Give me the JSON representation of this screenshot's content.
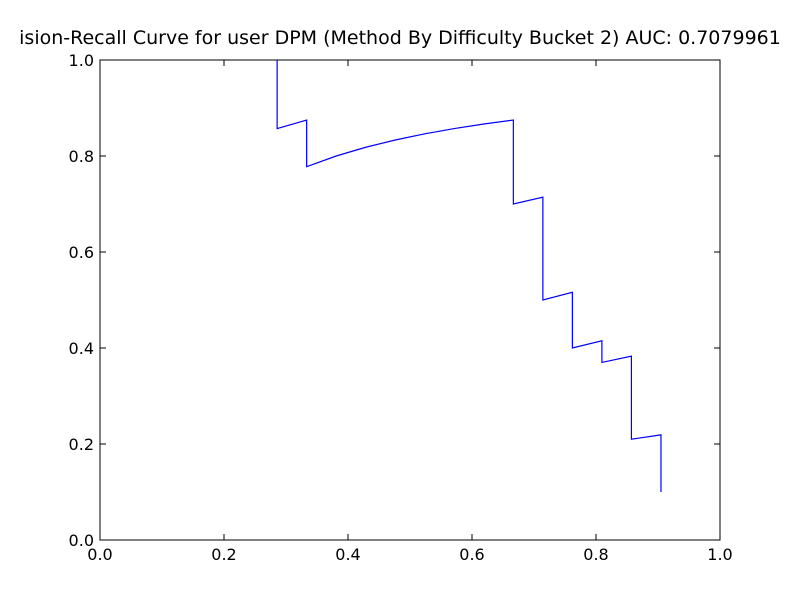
{
  "chart_data": {
    "type": "line",
    "title": "ision-Recall Curve for user DPM (Method By Difficulty Bucket 2) AUC: 0.7079961",
    "xlabel": "",
    "ylabel": "",
    "xlim": [
      0.0,
      1.0
    ],
    "ylim": [
      0.0,
      1.0
    ],
    "grid": false,
    "x_ticks": [
      "0.0",
      "0.2",
      "0.4",
      "0.6",
      "0.8",
      "1.0"
    ],
    "y_ticks": [
      "0.0",
      "0.2",
      "0.4",
      "0.6",
      "0.8",
      "1.0"
    ],
    "series": [
      {
        "color": "#0000ff",
        "points": [
          [
            0.2857,
            1.0
          ],
          [
            0.2857,
            0.8571
          ],
          [
            0.3333,
            0.875
          ],
          [
            0.3333,
            0.7778
          ],
          [
            0.381,
            0.8
          ],
          [
            0.4286,
            0.8182
          ],
          [
            0.4762,
            0.8333
          ],
          [
            0.5238,
            0.8462
          ],
          [
            0.5714,
            0.8571
          ],
          [
            0.619,
            0.8667
          ],
          [
            0.6667,
            0.875
          ],
          [
            0.6667,
            0.7
          ],
          [
            0.7143,
            0.7143
          ],
          [
            0.7143,
            0.5
          ],
          [
            0.7619,
            0.5161
          ],
          [
            0.7619,
            0.4
          ],
          [
            0.8095,
            0.415
          ],
          [
            0.8095,
            0.37
          ],
          [
            0.8571,
            0.383
          ],
          [
            0.8571,
            0.21
          ],
          [
            0.9048,
            0.219
          ],
          [
            0.9048,
            0.1
          ]
        ]
      }
    ]
  }
}
